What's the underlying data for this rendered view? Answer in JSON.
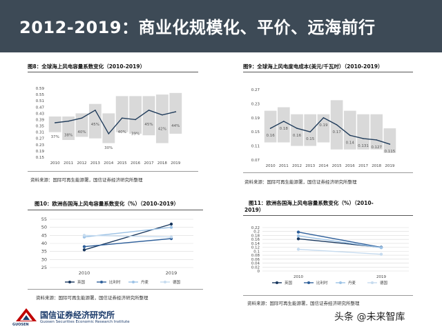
{
  "header": {
    "title": "2012-2019：商业化规模化、平价、远海前行"
  },
  "source_text": "资料来源：国际可再生能源署，国信证券经济研究所整理",
  "footer": {
    "org_name": "国信证券经济研究所",
    "org_name_en": "Guosen Securities Economic Research Institute",
    "logo_text": "GUOSEN",
    "watermark": "头条 @未来智库"
  },
  "colors": {
    "banner": "#3d4a56",
    "line": "#1f3b5a",
    "bar": "#d9d9d9",
    "c1": "#17365d",
    "c2": "#2e5f9a",
    "c3": "#9dc3e6",
    "c4": "#c6dbef"
  },
  "chart_data": [
    {
      "type": "line",
      "title": "图8：全球海上风电容量系数变化（2010-2019）",
      "categories": [
        "2010",
        "2011",
        "2012",
        "2013",
        "2014",
        "2015",
        "2016",
        "2017",
        "2018",
        "2019"
      ],
      "values": [
        0.37,
        0.38,
        0.4,
        0.45,
        0.3,
        0.4,
        0.39,
        0.45,
        0.42,
        0.44
      ],
      "data_labels": [
        "37%",
        "38%",
        "40%",
        "45%",
        "30%",
        "40%",
        "39%",
        "45%",
        "42%",
        "44%"
      ],
      "range_low": [
        0.31,
        0.26,
        0.28,
        0.27,
        0.24,
        0.31,
        0.3,
        0.29,
        0.24,
        0.3
      ],
      "range_high": [
        0.41,
        0.41,
        0.43,
        0.49,
        0.43,
        0.54,
        0.54,
        0.54,
        0.55,
        0.56
      ],
      "yticks": [
        "0.15",
        "0.19",
        "0.23",
        "0.27",
        "0.31",
        "0.35",
        "0.39",
        "0.43",
        "0.47",
        "0.51",
        "0.55",
        "0.59"
      ],
      "ylim": [
        0.15,
        0.59
      ]
    },
    {
      "type": "line",
      "title": "图9：全球海上风电度电成本(美元/千瓦时）（2010-2019）",
      "categories": [
        "2010",
        "2011",
        "2012",
        "2013",
        "2014",
        "2015",
        "2016",
        "2017",
        "2018",
        "2019"
      ],
      "values": [
        0.16,
        0.18,
        0.16,
        0.15,
        0.19,
        0.17,
        0.14,
        0.131,
        0.127,
        0.115
      ],
      "data_labels": [
        "0.16",
        "0.18",
        "0.16",
        "0.15",
        "0.19",
        "0.17",
        "0.14",
        "0.131",
        "0.127",
        "0.115"
      ],
      "range_low": [
        0.12,
        0.12,
        0.11,
        0.11,
        0.12,
        0.1,
        0.1,
        0.1,
        0.1,
        0.09
      ],
      "range_high": [
        0.21,
        0.22,
        0.2,
        0.2,
        0.2,
        0.24,
        0.21,
        0.2,
        0.2,
        0.16
      ],
      "yticks": [
        "0.07",
        "0.11",
        "0.15",
        "0.19",
        "0.23",
        "0.27"
      ],
      "ylim": [
        0.07,
        0.27
      ]
    },
    {
      "type": "line",
      "title": "图10：欧洲各国海上风电容量系数变化（%）（2010-2019）",
      "categories": [
        "2010",
        "2019"
      ],
      "series": [
        {
          "name": "英国",
          "values": [
            36,
            52
          ]
        },
        {
          "name": "比利时",
          "values": [
            38,
            43
          ]
        },
        {
          "name": "丹麦",
          "values": [
            44,
            50
          ]
        },
        {
          "name": "德国",
          "values": [
            45,
            44
          ]
        }
      ],
      "yticks": [
        "25",
        "30",
        "35",
        "40",
        "45",
        "50",
        "55"
      ],
      "ylim": [
        25,
        55
      ]
    },
    {
      "type": "line",
      "title": "图11：欧洲各国海上风电容量系数变化（%）（2010-2019）",
      "title_line1": "图11：欧洲各国海上风电容量系数变化（%）（2010-",
      "title_line2": "2019）",
      "categories": [
        "2010",
        "2019"
      ],
      "series": [
        {
          "name": "英国",
          "values": [
            0.163,
            0.12
          ]
        },
        {
          "name": "比利时",
          "values": [
            0.197,
            0.12
          ]
        },
        {
          "name": "丹麦",
          "values": [
            0.178,
            0.118
          ]
        },
        {
          "name": "德国",
          "values": [
            0.11,
            0.085
          ]
        }
      ],
      "yticks": [
        "0",
        "0.02",
        "0.04",
        "0.06",
        "0.08",
        "0.1",
        "0.12",
        "0.14",
        "0.16",
        "0.18",
        "0.2",
        "0.22"
      ],
      "ylim": [
        0,
        0.22
      ]
    }
  ]
}
